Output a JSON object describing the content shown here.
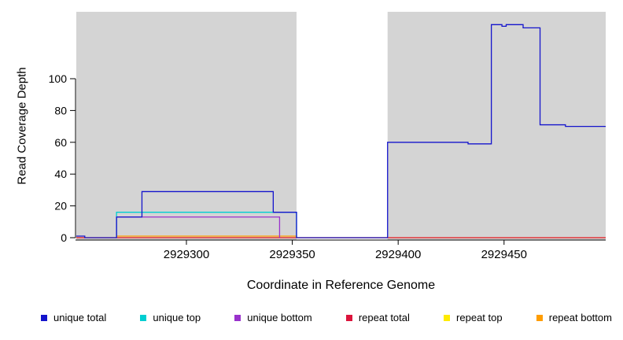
{
  "chart_data": {
    "type": "line",
    "style": "step-coverage-plot",
    "title": "",
    "xlabel": "Coordinate in Reference Genome",
    "ylabel": "Read Coverage Depth",
    "xlim": [
      2929248,
      2929498
    ],
    "ylim": [
      0,
      142
    ],
    "xticks": [
      2929300,
      2929350,
      2929400,
      2929450
    ],
    "yticks": [
      0,
      20,
      40,
      60,
      80,
      100
    ],
    "grid": false,
    "legend_position": "bottom",
    "shade_color": "#d4d4d4",
    "shaded_regions": [
      [
        2929248,
        2929352
      ],
      [
        2929395,
        2929498
      ]
    ],
    "series": [
      {
        "name": "repeat top",
        "color": "#ffeb00",
        "segments": [
          [
            2929248,
            2929498,
            0
          ]
        ]
      },
      {
        "name": "repeat total",
        "color": "#dc143c",
        "segments": [
          [
            2929248,
            2929498,
            0
          ]
        ]
      },
      {
        "name": "repeat bottom",
        "color": "#ff9d00",
        "segments": [
          [
            2929267,
            2929267,
            0
          ],
          [
            2929267,
            2929352,
            1
          ],
          [
            2929352,
            2929352,
            0
          ]
        ]
      },
      {
        "name": "unique bottom",
        "color": "#9932cc",
        "segments": [
          [
            2929267,
            2929267,
            0
          ],
          [
            2929267,
            2929344,
            13
          ],
          [
            2929344,
            2929344,
            0
          ]
        ]
      },
      {
        "name": "unique top",
        "color": "#00ced1",
        "segments": [
          [
            2929267,
            2929267,
            0
          ],
          [
            2929267,
            2929352,
            16
          ],
          [
            2929352,
            2929352,
            0
          ]
        ]
      },
      {
        "name": "unique total",
        "color": "#1414cc",
        "segments": [
          [
            2929248,
            2929252,
            1
          ],
          [
            2929252,
            2929267,
            0
          ],
          [
            2929267,
            2929279,
            13
          ],
          [
            2929279,
            2929341,
            29
          ],
          [
            2929341,
            2929352,
            16
          ],
          [
            2929352,
            2929395,
            0
          ],
          [
            2929395,
            2929433,
            60
          ],
          [
            2929433,
            2929444,
            59
          ],
          [
            2929444,
            2929449,
            134
          ],
          [
            2929449,
            2929451,
            133
          ],
          [
            2929451,
            2929459,
            134
          ],
          [
            2929459,
            2929467,
            132
          ],
          [
            2929467,
            2929479,
            71
          ],
          [
            2929479,
            2929498,
            70
          ]
        ]
      }
    ],
    "legend": [
      {
        "label": "unique total",
        "color": "#1414cc"
      },
      {
        "label": "unique top",
        "color": "#00ced1"
      },
      {
        "label": "unique bottom",
        "color": "#9932cc"
      },
      {
        "label": "repeat total",
        "color": "#dc143c"
      },
      {
        "label": "repeat top",
        "color": "#ffeb00"
      },
      {
        "label": "repeat bottom",
        "color": "#ff9d00"
      }
    ]
  }
}
